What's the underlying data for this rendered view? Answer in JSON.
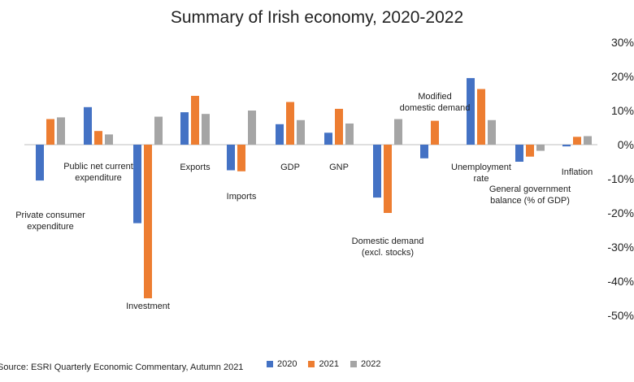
{
  "chart_data": {
    "type": "bar",
    "title": "Summary of Irish economy, 2020-2022",
    "source": "Source: ESRI Quarterly Economic Commentary, Autumn 2021",
    "ylim": [
      -50,
      30
    ],
    "y_ticks": [
      "30%",
      "20%",
      "10%",
      "0%",
      "-10%",
      "-20%",
      "-30%",
      "-40%",
      "-50%"
    ],
    "y_tick_values": [
      30,
      20,
      10,
      0,
      -10,
      -20,
      -30,
      -40,
      -50
    ],
    "grid": false,
    "legend_position": "bottom",
    "categories": [
      {
        "lines": [
          "Private consumer",
          "expenditure"
        ]
      },
      {
        "lines": [
          "Public net current",
          "expenditure"
        ]
      },
      {
        "lines": [
          "Investment"
        ]
      },
      {
        "lines": [
          "Exports"
        ]
      },
      {
        "lines": [
          "Imports"
        ]
      },
      {
        "lines": [
          "GDP"
        ]
      },
      {
        "lines": [
          "GNP"
        ]
      },
      {
        "lines": [
          "Domestic demand",
          "(excl. stocks)"
        ]
      },
      {
        "lines": [
          "Modified",
          "domestic demand"
        ]
      },
      {
        "lines": [
          "Unemployment",
          "rate"
        ]
      },
      {
        "lines": [
          "General government",
          "balance (% of GDP)"
        ]
      },
      {
        "lines": [
          "Inflation"
        ]
      }
    ],
    "series": [
      {
        "name": "2020",
        "color": "#4472C4",
        "values": [
          -10.5,
          11,
          -23,
          9.5,
          -7.5,
          6,
          3.5,
          -15.5,
          -4,
          19.5,
          -5,
          -0.5
        ]
      },
      {
        "name": "2021",
        "color": "#ED7D31",
        "values": [
          7.5,
          4,
          -45,
          14.3,
          -7.8,
          12.5,
          10.5,
          -20,
          7,
          16.3,
          -3.5,
          2.3
        ]
      },
      {
        "name": "2022",
        "color": "#A5A5A5",
        "values": [
          8,
          3,
          8.2,
          9,
          10,
          7.2,
          6.2,
          7.5,
          null,
          7.2,
          -1.8,
          2.5
        ]
      }
    ]
  }
}
